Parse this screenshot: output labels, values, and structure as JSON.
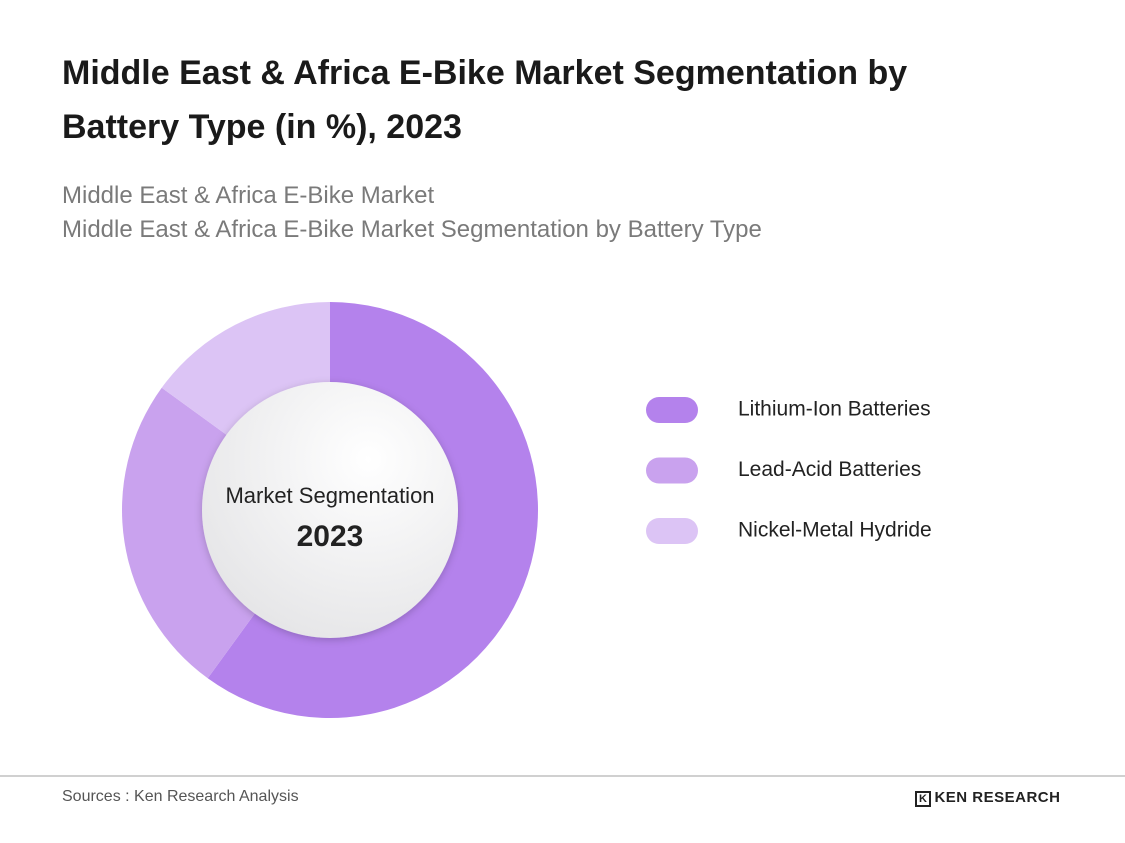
{
  "chart_data": {
    "type": "donut",
    "title": "Middle East & Africa E-Bike Market Segmentation by Battery Type (in %), 2023",
    "subtitles": [
      "Middle East & Africa E-Bike Market",
      "Middle East & Africa E-Bike Market Segmentation by Battery Type"
    ],
    "center_label": "Market Segmentation",
    "center_year": "2023",
    "categories": [
      "Lithium-Ion Batteries",
      "Lead-Acid Batteries",
      "Nickel-Metal Hydride"
    ],
    "values": [
      60,
      25,
      15
    ],
    "colors": [
      "#b482ec",
      "#c9a2ee",
      "#dcc4f5"
    ],
    "legend": "right"
  },
  "footer": {
    "source": "Sources : Ken Research Analysis",
    "brand": "KEN RESEARCH"
  }
}
